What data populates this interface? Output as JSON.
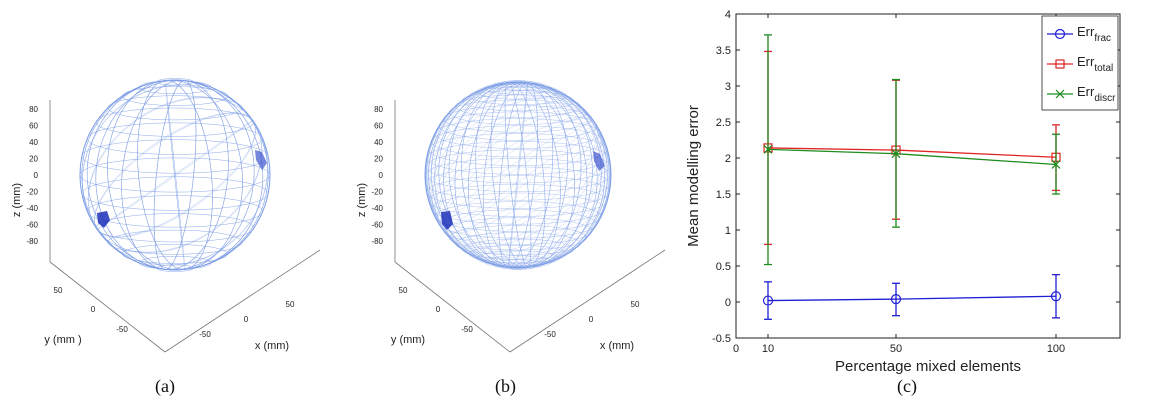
{
  "panels": [
    {
      "id": "a",
      "caption": "(a)",
      "zlabel": "z (mm)",
      "ylabel": "y (mm )",
      "xlabel": "x (mm)",
      "zticks": [
        "80",
        "60",
        "40",
        "20",
        "0",
        "-20",
        "-40",
        "-60",
        "-80"
      ],
      "yticks": [
        "50",
        "0",
        "-50"
      ],
      "xticks": [
        "-50",
        "0",
        "50"
      ],
      "mesh": "coarse"
    },
    {
      "id": "b",
      "caption": "(b)",
      "zlabel": "z (mm)",
      "ylabel": "y (mm)",
      "xlabel": "x (mm)",
      "zticks": [
        "80",
        "60",
        "40",
        "20",
        "0",
        "-20",
        "-40",
        "-60",
        "-80"
      ],
      "yticks": [
        "50",
        "0",
        "-50"
      ],
      "xticks": [
        "-50",
        "0",
        "50"
      ],
      "mesh": "fine"
    }
  ],
  "colors": {
    "mesh": "#7f9fe6",
    "inclusion": "#1d2fb8"
  },
  "chart_data": {
    "type": "line",
    "caption": "(c)",
    "xlabel": "Percentage mixed elements",
    "ylabel": "Mean modelling error",
    "xlim": [
      0,
      120
    ],
    "ylim": [
      -0.5,
      4
    ],
    "xticks": [
      "0",
      "10",
      "50",
      "100"
    ],
    "yticks": [
      "-0.5",
      "0",
      "0.5",
      "1",
      "1.5",
      "2",
      "2.5",
      "3",
      "3.5",
      "4"
    ],
    "x": [
      10,
      50,
      100
    ],
    "legend_position": "top-right",
    "series": [
      {
        "name": "Err",
        "subscript": "frac",
        "color": "#1f1fd6",
        "marker": "circle",
        "values": [
          0.02,
          0.04,
          0.08
        ],
        "err_low": [
          -0.24,
          -0.19,
          -0.22
        ],
        "err_high": [
          0.28,
          0.26,
          0.38
        ]
      },
      {
        "name": "Err",
        "subscript": "total",
        "color": "#e02424",
        "marker": "square",
        "values": [
          2.14,
          2.11,
          2.01
        ],
        "err_low": [
          0.8,
          1.15,
          1.55
        ],
        "err_high": [
          3.48,
          3.08,
          2.46
        ]
      },
      {
        "name": "Err",
        "subscript": "discr",
        "color": "#1e8c1e",
        "marker": "x",
        "values": [
          2.12,
          2.06,
          1.91
        ],
        "err_low": [
          0.52,
          1.04,
          1.5
        ],
        "err_high": [
          3.71,
          3.09,
          2.33
        ]
      }
    ]
  }
}
